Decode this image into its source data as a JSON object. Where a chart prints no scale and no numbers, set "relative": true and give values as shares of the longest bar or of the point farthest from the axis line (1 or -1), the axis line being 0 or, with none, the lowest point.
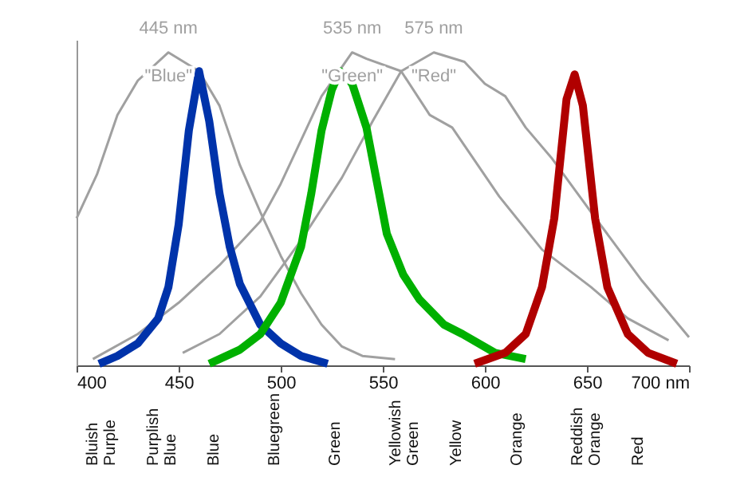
{
  "chart_data": {
    "type": "line",
    "relative": true,
    "xlim": [
      400,
      700
    ],
    "xticks": [
      400,
      450,
      500,
      550,
      600,
      650,
      {
        "value": 700,
        "label": "700 nm"
      }
    ],
    "series": [
      {
        "name": "\"Blue\"",
        "color": "#a0a0a0",
        "x": [
          400,
          410,
          420,
          430,
          445,
          460,
          470,
          480,
          490,
          500,
          510,
          520,
          530,
          540,
          556
        ],
        "values": [
          0.47,
          0.61,
          0.8,
          0.91,
          1,
          0.94,
          0.83,
          0.64,
          0.49,
          0.35,
          0.23,
          0.13,
          0.06,
          0.03,
          0.02
        ]
      },
      {
        "name": "\"Green\"",
        "color": "#a0a0a0",
        "x": [
          408,
          430,
          450,
          470,
          490,
          500,
          510,
          520,
          535,
          542,
          559,
          573,
          584,
          607,
          628,
          652,
          670,
          690
        ],
        "values": [
          0.02,
          0.1,
          0.2,
          0.32,
          0.46,
          0.58,
          0.72,
          0.86,
          1,
          0.98,
          0.94,
          0.8,
          0.76,
          0.54,
          0.37,
          0.25,
          0.15,
          0.08
        ]
      },
      {
        "name": "\"Red\"",
        "color": "#a0a0a0",
        "x": [
          452,
          470,
          490,
          510,
          530,
          545,
          559,
          575,
          590,
          600,
          610,
          620,
          633,
          652,
          677,
          700
        ],
        "values": [
          0.04,
          0.1,
          0.22,
          0.4,
          0.6,
          0.78,
          0.94,
          1,
          0.97,
          0.9,
          0.86,
          0.76,
          0.66,
          0.49,
          0.27,
          0.09
        ]
      },
      {
        "color": "#0033aa",
        "x": [
          411,
          420,
          430,
          440,
          445,
          450,
          455,
          460,
          465,
          470,
          475,
          480,
          490,
          500,
          510,
          523
        ],
        "values": [
          0.005,
          0.03,
          0.07,
          0.15,
          0.25,
          0.45,
          0.75,
          0.94,
          0.78,
          0.55,
          0.38,
          0.26,
          0.13,
          0.07,
          0.03,
          0.005
        ]
      },
      {
        "color": "#00b000",
        "x": [
          465,
          480,
          490,
          500,
          510,
          515,
          520,
          525,
          529,
          535,
          542,
          552,
          560,
          568,
          580,
          589,
          605,
          620
        ],
        "values": [
          0.005,
          0.05,
          0.1,
          0.2,
          0.38,
          0.55,
          0.75,
          0.88,
          0.94,
          0.9,
          0.76,
          0.42,
          0.29,
          0.21,
          0.13,
          0.1,
          0.04,
          0.02
        ]
      },
      {
        "color": "#b00000",
        "x": [
          595,
          610,
          620,
          628,
          634,
          640,
          644,
          648,
          654,
          660,
          670,
          680,
          694
        ],
        "values": [
          0.005,
          0.04,
          0.1,
          0.25,
          0.47,
          0.85,
          0.93,
          0.83,
          0.47,
          0.25,
          0.1,
          0.04,
          0.005
        ]
      }
    ],
    "annotations": [
      {
        "text": "445 nm",
        "x": 445,
        "y": 1
      },
      {
        "text": "535 nm",
        "x": 535,
        "y": 1
      },
      {
        "text": "575 nm",
        "x": 575,
        "y": 1
      },
      "Bluish Purple",
      "Purplish Blue",
      "Blue",
      "Bluegreen",
      "Green",
      "Yellowish Green",
      "Yellow",
      "Orange",
      "Reddish Orange",
      "Red"
    ]
  }
}
